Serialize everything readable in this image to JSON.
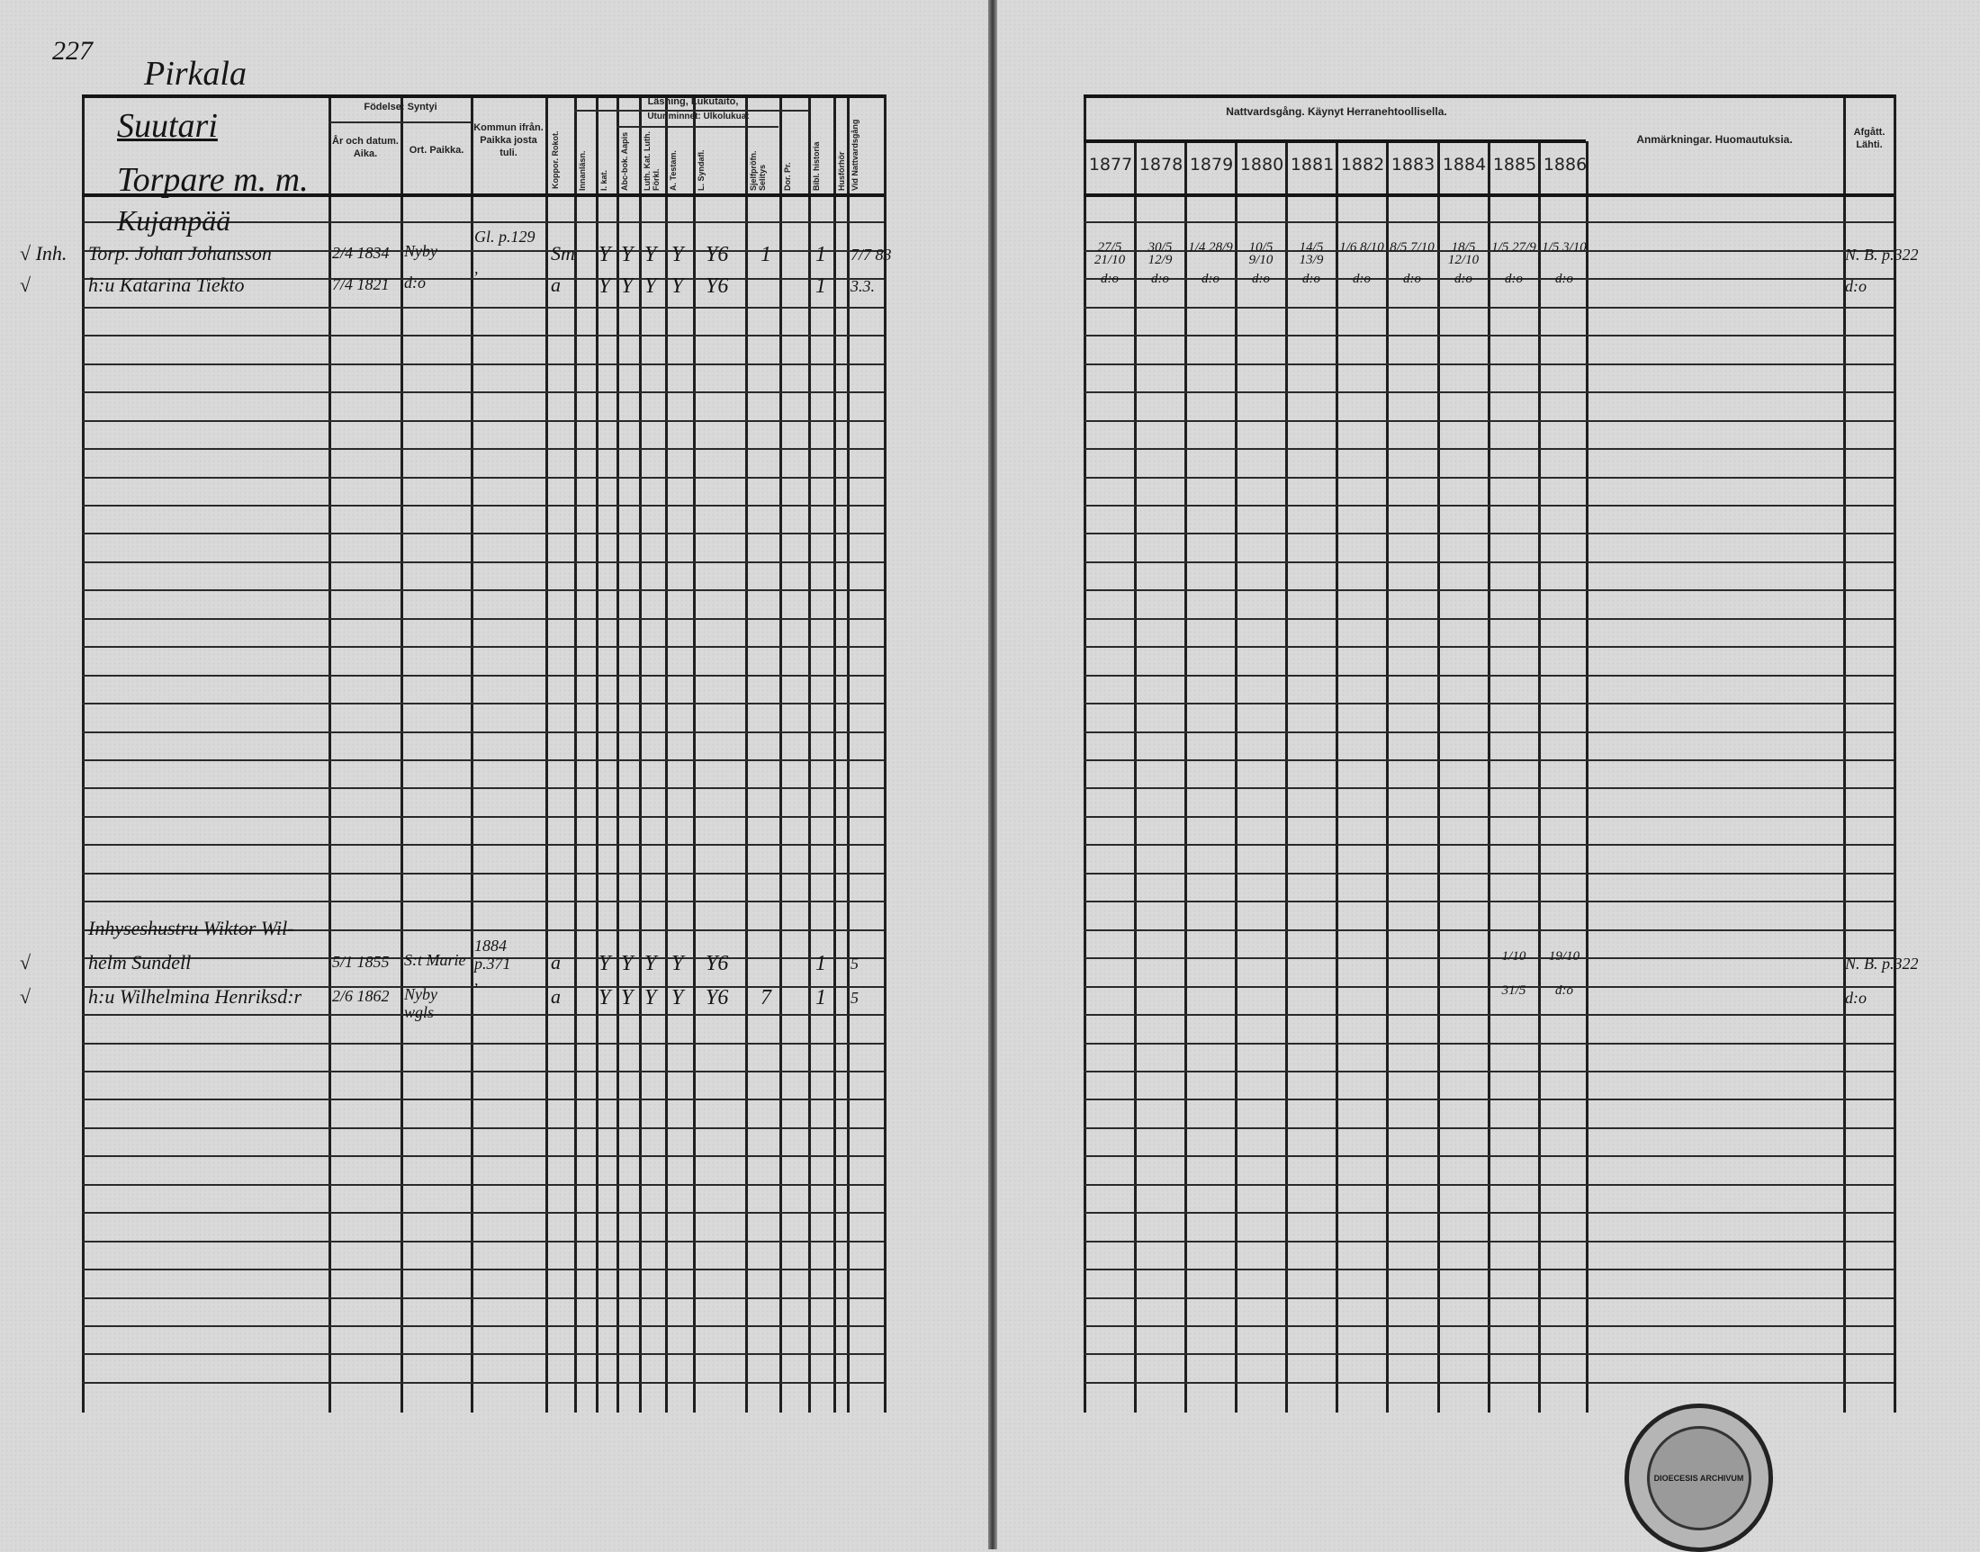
{
  "page_number": "227",
  "village": "Pirkala",
  "farm": "Suutari",
  "category": "Torpare m. m.",
  "croft": "Kujanpää",
  "left_headers": {
    "birth": "Födelse: Syntyi",
    "birth_date": "År och datum. Aika.",
    "birth_place": "Ort. Paikka.",
    "came_from": "Kommun ifrån. Paikka josta tuli.",
    "smallpox": "Koppor. Rokot.",
    "reading": "Läsning, Lukutaito,",
    "by_heart": "Utur minnet: Ulkolukua:",
    "vertical": [
      "Innanläsn.",
      "I. kat.",
      "Abc-bok. Aapis",
      "Luth. Kat. Luth. Förkl.",
      "A. Testam.",
      "L. Syndafl.",
      "Sjelfpröfn. Selitys",
      "Dor. Pr.",
      "Bibl. historia",
      "Husförhör",
      "Vid Nattvardsgång"
    ]
  },
  "right_headers": {
    "communion": "Nattvardsgång. Käynyt Herranehtoollisella.",
    "years": [
      "1877",
      "1878",
      "1879",
      "1880",
      "1881",
      "1882",
      "1883",
      "1884",
      "1885",
      "1886"
    ],
    "remarks": "Anmärkningar. Huomautuksia.",
    "departed": "Afgått. Lähti."
  },
  "entries": [
    {
      "mark": "√ Inh.",
      "name": "Torp. Johan Johansson",
      "birth_date": "2/4 1834",
      "birth_place": "Nyby",
      "came_from": "Gl. p.129",
      "smallpox": "Sm",
      "reading": [
        "Y",
        "Y",
        "Y",
        "Y"
      ],
      "score": "Y6",
      "bibl": "1",
      "hus": "1",
      "vid": "7/7 83",
      "communion": [
        "27/5 21/10",
        "30/5 12/9",
        "1/4 28/9",
        "10/5 9/10",
        "14/5 13/9",
        "1/6 8/10",
        "8/5 7/10",
        "18/5 12/10",
        "1/5 27/9",
        "1/5 3/10"
      ],
      "departed": "N. B. p.322"
    },
    {
      "mark": "√",
      "name": "h:u Katarina Tiekto",
      "birth_date": "7/4 1821",
      "birth_place": "d:o",
      "came_from": ",",
      "smallpox": "a",
      "reading": [
        "Y",
        "Y",
        "Y",
        "Y"
      ],
      "score": "Y6",
      "bibl": "",
      "hus": "1",
      "vid": "3.3.",
      "communion": [
        "d:o",
        "d:o",
        "d:o",
        "d:o",
        "d:o",
        "d:o",
        "d:o",
        "d:o",
        "d:o",
        "d:o"
      ],
      "departed": "d:o"
    },
    {
      "mark": "",
      "name": "Inhyseshustru Wiktor Wil-",
      "birth_date": "",
      "birth_place": "",
      "came_from": "",
      "smallpox": "",
      "reading": [
        "",
        "",
        "",
        ""
      ],
      "score": "",
      "bibl": "",
      "hus": "",
      "vid": "",
      "communion": [
        "",
        "",
        "",
        "",
        "",
        "",
        "",
        "",
        "",
        ""
      ],
      "departed": ""
    },
    {
      "mark": "√",
      "name": "helm Sundell",
      "birth_date": "5/1 1855",
      "birth_place": "S:t Marie",
      "came_from": "1884 p.371",
      "smallpox": "a",
      "reading": [
        "Y",
        "Y",
        "Y",
        "Y"
      ],
      "score": "Y6",
      "bibl": "",
      "hus": "1",
      "vid": "5",
      "communion": [
        "",
        "",
        "",
        "",
        "",
        "",
        "",
        "",
        "1/10",
        "19/10"
      ],
      "departed": "N. B. p.322"
    },
    {
      "mark": "√",
      "name": "h:u Wilhelmina Henriksd:r",
      "birth_date": "2/6 1862",
      "birth_place": "Nyby wgls",
      "came_from": ",",
      "smallpox": "a",
      "reading": [
        "Y",
        "Y",
        "Y",
        "Y"
      ],
      "score": "Y6",
      "bibl": "7",
      "hus": "1",
      "vid": "5",
      "communion": [
        "",
        "",
        "",
        "",
        "",
        "",
        "",
        "",
        "31/5",
        "d:o"
      ],
      "departed": "d:o"
    }
  ],
  "stamp_text": "DIOECESIS ARCHIVUM"
}
